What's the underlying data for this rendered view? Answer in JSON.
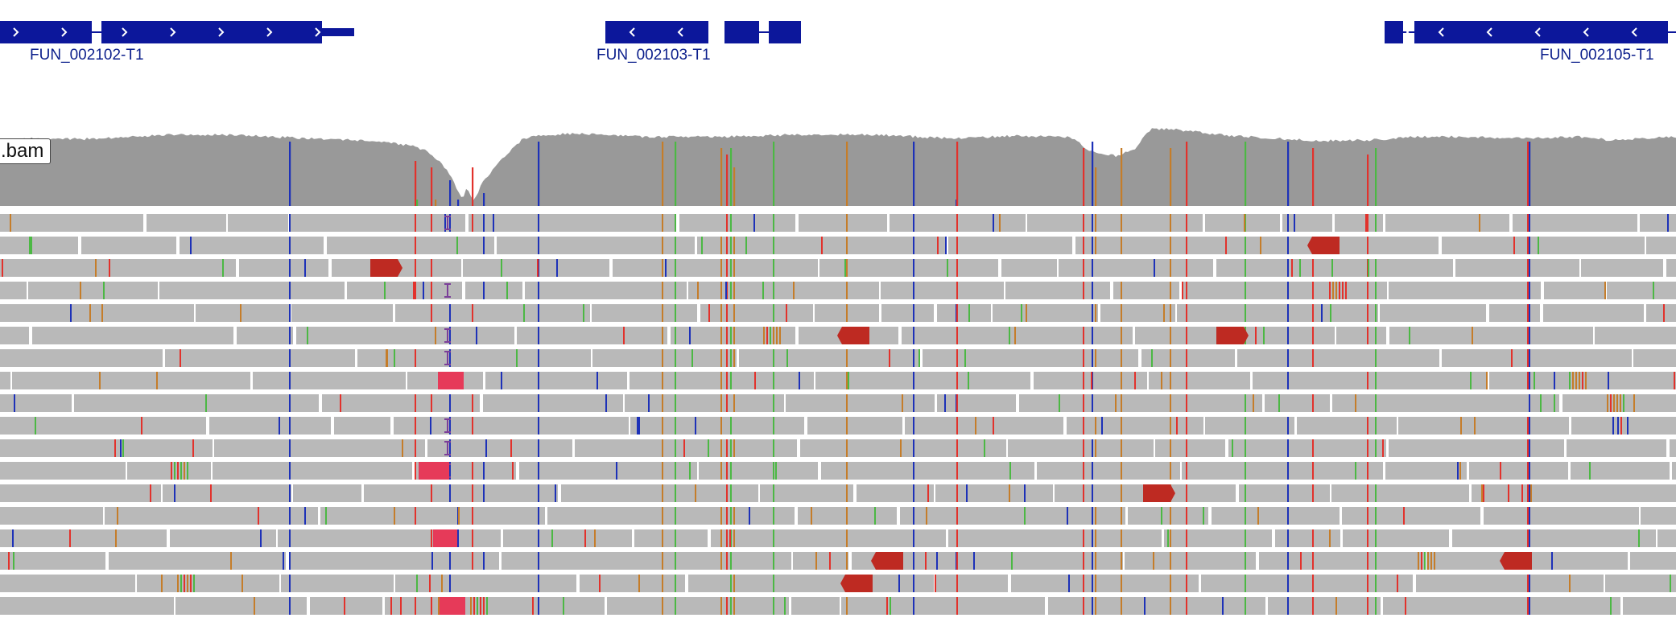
{
  "genes": [
    {
      "name": "FUN_002102-T1",
      "strand": "+"
    },
    {
      "name": "FUN_002103-T1",
      "strand": "-"
    },
    {
      "name": "FUN_002105-T1",
      "strand": "-"
    }
  ],
  "track": {
    "name": ".bam"
  },
  "colors": {
    "gene": "#0c179b",
    "coverage": "#999999",
    "read": "#b9b9b9",
    "mismatch_a": "#4cb844",
    "mismatch_c": "#1d31b8",
    "mismatch_g": "#c57d2a",
    "mismatch_t": "#e2322c",
    "clip": "#be2a22",
    "insertion": "#7b3f99",
    "softclip": "#e63a59"
  }
}
